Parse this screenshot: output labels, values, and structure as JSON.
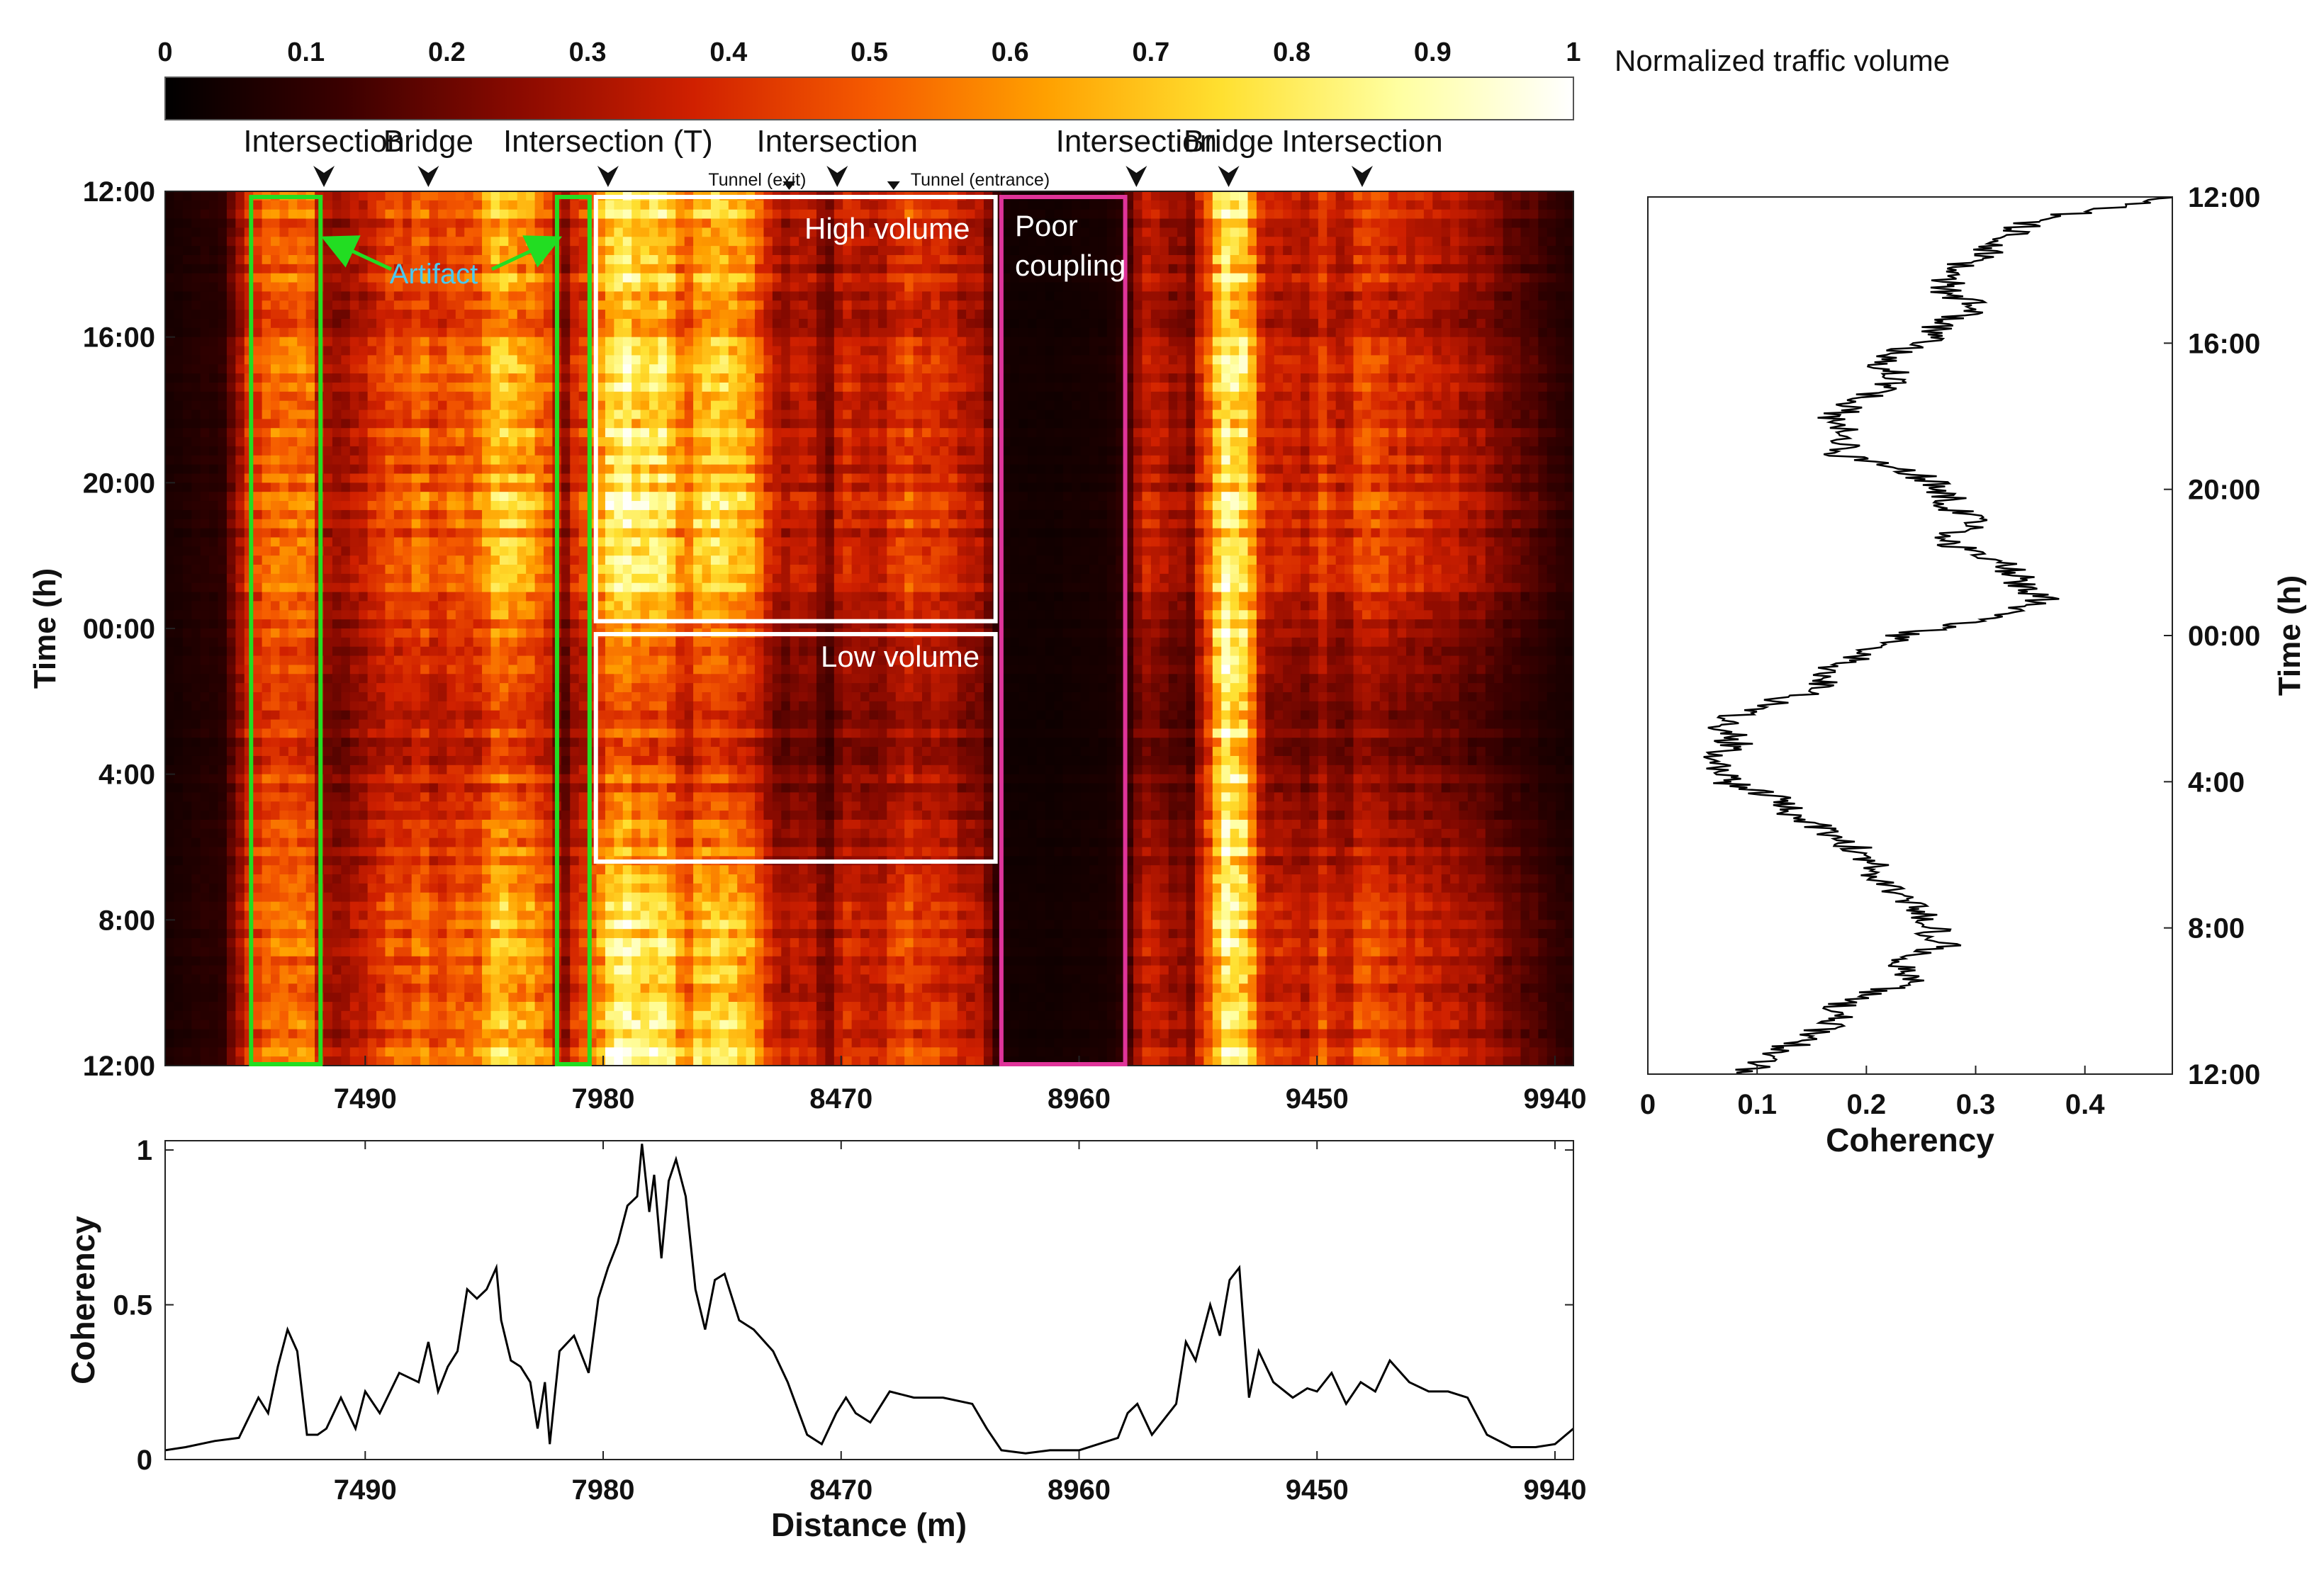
{
  "colorbar": {
    "label": "Normalized traffic volume",
    "ticks": [
      "0",
      "0.1",
      "0.2",
      "0.3",
      "0.4",
      "0.5",
      "0.6",
      "0.7",
      "0.8",
      "0.9",
      "1"
    ],
    "colormap": [
      "#000000",
      "#3a0000",
      "#8a0a00",
      "#d02000",
      "#f55a00",
      "#ffa000",
      "#ffe030",
      "#ffffa0",
      "#ffffff"
    ]
  },
  "chart_data": [
    {
      "id": "heatmap",
      "type": "heatmap",
      "title": "",
      "xlabel": "",
      "ylabel": "Time (h)",
      "xlim": [
        7078,
        9978
      ],
      "x_ticks": [
        "7490",
        "7980",
        "8470",
        "8960",
        "9450",
        "9940"
      ],
      "x_tick_values": [
        7490,
        7980,
        8470,
        8960,
        9450,
        9940
      ],
      "y_ticks": [
        "12:00",
        "16:00",
        "20:00",
        "00:00",
        "4:00",
        "8:00",
        "12:00"
      ],
      "y_tick_hours": [
        0,
        4,
        8,
        12,
        16,
        20,
        24
      ],
      "color_range": [
        0,
        1
      ],
      "landmarks": [
        {
          "label": "Intersection",
          "distance": 7405
        },
        {
          "label": "Bridge",
          "distance": 7620
        },
        {
          "label": "Intersection (T)",
          "distance": 7990
        },
        {
          "label": "Tunnel (exit)",
          "distance": 8363
        },
        {
          "label": "Intersection",
          "distance": 8462
        },
        {
          "label": "Tunnel (entrance)",
          "distance": 8578
        },
        {
          "label": "Intersection",
          "distance": 9078
        },
        {
          "label": "Bridge",
          "distance": 9268
        },
        {
          "label": "Intersection",
          "distance": 9543
        }
      ],
      "annotations": {
        "artifact_label": "Artifact",
        "high_volume": "High volume",
        "low_volume": "Low volume",
        "poor_coupling_line1": "Poor",
        "poor_coupling_line2": "coupling"
      },
      "regions": [
        {
          "kind": "artifact",
          "x_range": [
            7255,
            7398
          ],
          "hours": [
            0,
            24
          ],
          "color": "#22dd22"
        },
        {
          "kind": "artifact",
          "x_range": [
            7885,
            7952
          ],
          "hours": [
            0,
            24
          ],
          "color": "#22dd22"
        },
        {
          "kind": "high-volume",
          "x_range": [
            7965,
            8788
          ],
          "hours": [
            0,
            11.8
          ],
          "color": "#ffffff"
        },
        {
          "kind": "low-volume",
          "x_range": [
            7965,
            8788
          ],
          "hours": [
            12,
            18.4
          ],
          "color": "#ffffff"
        },
        {
          "kind": "poor-coupling",
          "x_range": [
            8800,
            9055
          ],
          "hours": [
            0,
            24
          ],
          "color": "#e0349a"
        }
      ],
      "column_profile": {
        "distance": [
          7078,
          7200,
          7260,
          7300,
          7330,
          7370,
          7398,
          7440,
          7490,
          7530,
          7580,
          7610,
          7640,
          7680,
          7720,
          7760,
          7790,
          7830,
          7870,
          7900,
          7930,
          7960,
          7990,
          8030,
          8070,
          8110,
          8150,
          8190,
          8230,
          8270,
          8310,
          8350,
          8400,
          8450,
          8470,
          8500,
          8550,
          8600,
          8650,
          8700,
          8760,
          8800,
          8850,
          8900,
          8960,
          9020,
          9055,
          9090,
          9140,
          9190,
          9220,
          9250,
          9280,
          9310,
          9340,
          9380,
          9420,
          9460,
          9500,
          9550,
          9600,
          9650,
          9700,
          9750,
          9800,
          9850,
          9900,
          9940,
          9978
        ],
        "day_intensity": [
          0.06,
          0.12,
          0.55,
          0.6,
          0.62,
          0.7,
          0.4,
          0.35,
          0.45,
          0.55,
          0.6,
          0.7,
          0.55,
          0.6,
          0.65,
          0.85,
          0.9,
          0.8,
          0.6,
          0.3,
          0.55,
          0.7,
          0.95,
          1.0,
          1.0,
          0.95,
          0.7,
          0.9,
          0.95,
          0.85,
          0.55,
          0.4,
          0.45,
          0.25,
          0.55,
          0.45,
          0.4,
          0.6,
          0.5,
          0.45,
          0.4,
          0.06,
          0.05,
          0.05,
          0.06,
          0.06,
          0.12,
          0.45,
          0.4,
          0.3,
          0.55,
          0.9,
          0.95,
          0.85,
          0.45,
          0.5,
          0.4,
          0.55,
          0.45,
          0.6,
          0.55,
          0.5,
          0.45,
          0.4,
          0.35,
          0.25,
          0.2,
          0.15,
          0.1
        ],
        "night_intensity": [
          0.05,
          0.1,
          0.45,
          0.45,
          0.45,
          0.45,
          0.25,
          0.2,
          0.3,
          0.35,
          0.35,
          0.4,
          0.3,
          0.35,
          0.35,
          0.45,
          0.45,
          0.4,
          0.3,
          0.15,
          0.3,
          0.35,
          0.4,
          0.42,
          0.42,
          0.38,
          0.3,
          0.35,
          0.38,
          0.3,
          0.25,
          0.15,
          0.2,
          0.1,
          0.2,
          0.25,
          0.2,
          0.3,
          0.28,
          0.25,
          0.2,
          0.04,
          0.04,
          0.04,
          0.05,
          0.05,
          0.1,
          0.2,
          0.15,
          0.12,
          0.4,
          0.95,
          1.0,
          0.8,
          0.2,
          0.2,
          0.15,
          0.2,
          0.15,
          0.2,
          0.18,
          0.15,
          0.15,
          0.12,
          0.1,
          0.08,
          0.06,
          0.05,
          0.04
        ]
      },
      "time_profile": {
        "hours": [
          0,
          1,
          2,
          3,
          4,
          5,
          6,
          7,
          8,
          9,
          10,
          11,
          12,
          13,
          14,
          15,
          16,
          17,
          18,
          19,
          20,
          21,
          22,
          23,
          24
        ],
        "activity": [
          0.85,
          0.8,
          0.8,
          0.75,
          0.72,
          0.8,
          0.85,
          0.9,
          0.92,
          0.92,
          0.9,
          0.8,
          0.45,
          0.35,
          0.3,
          0.28,
          0.35,
          0.45,
          0.55,
          0.7,
          0.8,
          0.85,
          0.9,
          0.98,
          1.0
        ]
      }
    },
    {
      "id": "coherency-vs-time",
      "type": "line",
      "orientation": "vertical",
      "xlabel": "Coherency",
      "ylabel": "Time (h)",
      "xlim": [
        0,
        0.48
      ],
      "x_ticks": [
        "0",
        "0.1",
        "0.2",
        "0.3",
        "0.4"
      ],
      "x_tick_values": [
        0,
        0.1,
        0.2,
        0.3,
        0.4
      ],
      "y_ticks": [
        "12:00",
        "16:00",
        "20:00",
        "00:00",
        "4:00",
        "8:00",
        "12:00"
      ],
      "y_tick_hours": [
        0,
        4,
        8,
        12,
        16,
        20,
        24
      ],
      "series": [
        {
          "name": "Coherency",
          "hours": [
            0,
            0.3,
            0.6,
            1.0,
            1.5,
            2.0,
            2.5,
            3.0,
            3.5,
            4.0,
            4.5,
            5.0,
            5.5,
            6.0,
            6.5,
            7.0,
            7.5,
            8.0,
            8.5,
            9.0,
            9.3,
            9.6,
            10.0,
            10.5,
            11.0,
            11.5,
            12.0,
            12.5,
            13.0,
            13.5,
            14.0,
            14.5,
            15.0,
            15.5,
            16.0,
            16.5,
            17.0,
            17.5,
            18.0,
            18.5,
            19.0,
            19.5,
            20.0,
            20.5,
            21.0,
            21.5,
            22.0,
            22.5,
            23.0,
            23.5,
            24.0
          ],
          "values": [
            0.47,
            0.42,
            0.36,
            0.33,
            0.31,
            0.28,
            0.27,
            0.3,
            0.27,
            0.25,
            0.21,
            0.23,
            0.2,
            0.17,
            0.19,
            0.17,
            0.24,
            0.27,
            0.28,
            0.3,
            0.26,
            0.29,
            0.33,
            0.34,
            0.36,
            0.33,
            0.23,
            0.2,
            0.16,
            0.16,
            0.09,
            0.07,
            0.08,
            0.06,
            0.07,
            0.12,
            0.14,
            0.17,
            0.2,
            0.21,
            0.22,
            0.25,
            0.26,
            0.27,
            0.23,
            0.24,
            0.18,
            0.17,
            0.15,
            0.11,
            0.09
          ]
        }
      ]
    },
    {
      "id": "coherency-vs-distance",
      "type": "line",
      "xlabel": "Distance (m)",
      "ylabel": "Coherency",
      "xlim": [
        7078,
        9978
      ],
      "ylim": [
        0,
        1.03
      ],
      "x_ticks": [
        "7490",
        "7980",
        "8470",
        "8960",
        "9450",
        "9940"
      ],
      "x_tick_values": [
        7490,
        7980,
        8470,
        8960,
        9450,
        9940
      ],
      "y_ticks": [
        "0",
        "0.5",
        "1"
      ],
      "y_tick_values": [
        0,
        0.5,
        1
      ],
      "series": [
        {
          "name": "Coherency",
          "x": [
            7078,
            7120,
            7180,
            7230,
            7270,
            7290,
            7310,
            7330,
            7350,
            7370,
            7392,
            7410,
            7440,
            7470,
            7490,
            7520,
            7560,
            7600,
            7620,
            7640,
            7660,
            7680,
            7700,
            7720,
            7740,
            7760,
            7770,
            7790,
            7810,
            7830,
            7845,
            7860,
            7870,
            7880,
            7890,
            7920,
            7950,
            7970,
            7990,
            8010,
            8030,
            8050,
            8060,
            8075,
            8085,
            8100,
            8115,
            8130,
            8150,
            8170,
            8190,
            8210,
            8230,
            8260,
            8290,
            8330,
            8360,
            8400,
            8430,
            8460,
            8480,
            8500,
            8530,
            8570,
            8620,
            8680,
            8740,
            8770,
            8800,
            8850,
            8900,
            8960,
            9000,
            9040,
            9060,
            9080,
            9110,
            9130,
            9160,
            9180,
            9200,
            9230,
            9250,
            9270,
            9290,
            9310,
            9330,
            9360,
            9400,
            9430,
            9450,
            9480,
            9510,
            9540,
            9570,
            9600,
            9640,
            9680,
            9720,
            9760,
            9800,
            9850,
            9900,
            9940,
            9978
          ],
          "values": [
            0.03,
            0.04,
            0.06,
            0.07,
            0.2,
            0.15,
            0.3,
            0.42,
            0.35,
            0.08,
            0.08,
            0.1,
            0.2,
            0.1,
            0.22,
            0.15,
            0.28,
            0.25,
            0.38,
            0.22,
            0.3,
            0.35,
            0.55,
            0.52,
            0.55,
            0.62,
            0.45,
            0.32,
            0.3,
            0.25,
            0.1,
            0.25,
            0.05,
            0.2,
            0.35,
            0.4,
            0.28,
            0.52,
            0.62,
            0.7,
            0.82,
            0.85,
            1.02,
            0.8,
            0.92,
            0.65,
            0.9,
            0.97,
            0.85,
            0.55,
            0.42,
            0.58,
            0.6,
            0.45,
            0.42,
            0.35,
            0.25,
            0.08,
            0.05,
            0.15,
            0.2,
            0.15,
            0.12,
            0.22,
            0.2,
            0.2,
            0.18,
            0.1,
            0.03,
            0.02,
            0.03,
            0.03,
            0.05,
            0.07,
            0.15,
            0.18,
            0.08,
            0.12,
            0.18,
            0.38,
            0.32,
            0.5,
            0.4,
            0.58,
            0.62,
            0.2,
            0.35,
            0.25,
            0.2,
            0.23,
            0.22,
            0.28,
            0.18,
            0.25,
            0.22,
            0.32,
            0.25,
            0.22,
            0.22,
            0.2,
            0.08,
            0.04,
            0.04,
            0.05,
            0.1
          ]
        }
      ]
    }
  ]
}
